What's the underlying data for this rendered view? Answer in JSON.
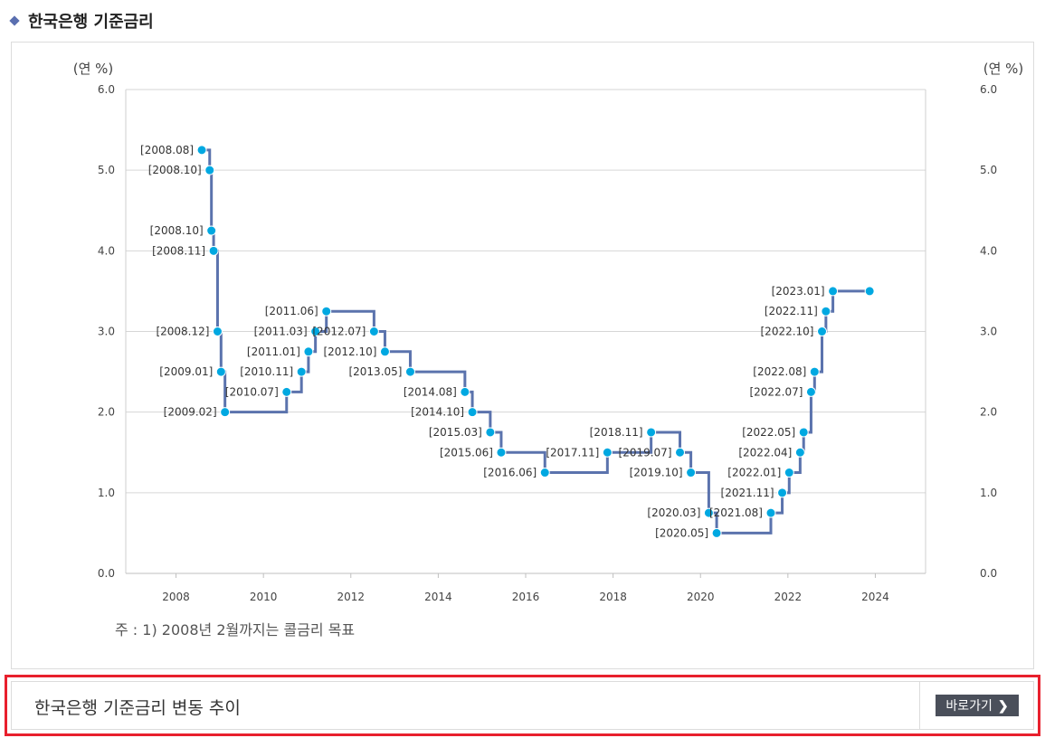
{
  "section": {
    "title": "한국은행 기준금리"
  },
  "chart_data": {
    "type": "line",
    "step": true,
    "ylabel_left": "(연 %)",
    "ylabel_right": "(연 %)",
    "ylim": [
      0,
      6
    ],
    "yticks": [
      "0.0",
      "1.0",
      "2.0",
      "3.0",
      "4.0",
      "5.0",
      "6.0"
    ],
    "xlim": [
      2006.85,
      2025.15
    ],
    "xticks": [
      "2008",
      "2010",
      "2012",
      "2014",
      "2016",
      "2018",
      "2020",
      "2022",
      "2024"
    ],
    "grid": true,
    "line_color": "#5b73ad",
    "marker_color": "#00a8e1",
    "points": [
      {
        "label": "[2008.08]",
        "x": 2008.59,
        "y": 5.25,
        "side": "left"
      },
      {
        "label": "[2008.10]",
        "x": 2008.77,
        "y": 5.0,
        "side": "left"
      },
      {
        "label": "[2008.10]",
        "x": 2008.81,
        "y": 4.25,
        "side": "left"
      },
      {
        "label": "[2008.11]",
        "x": 2008.86,
        "y": 4.0,
        "side": "left"
      },
      {
        "label": "[2008.12]",
        "x": 2008.95,
        "y": 3.0,
        "side": "left"
      },
      {
        "label": "[2009.01]",
        "x": 2009.03,
        "y": 2.5,
        "side": "left"
      },
      {
        "label": "[2009.02]",
        "x": 2009.12,
        "y": 2.0,
        "side": "left"
      },
      {
        "label": "[2010.07]",
        "x": 2010.53,
        "y": 2.25,
        "side": "left"
      },
      {
        "label": "[2010.11]",
        "x": 2010.87,
        "y": 2.5,
        "side": "left"
      },
      {
        "label": "[2011.01]",
        "x": 2011.03,
        "y": 2.75,
        "side": "left"
      },
      {
        "label": "[2011.03]",
        "x": 2011.19,
        "y": 3.0,
        "side": "left"
      },
      {
        "label": "[2011.06]",
        "x": 2011.44,
        "y": 3.25,
        "side": "left"
      },
      {
        "label": "[2012.07]",
        "x": 2012.53,
        "y": 3.0,
        "side": "left"
      },
      {
        "label": "[2012.10]",
        "x": 2012.78,
        "y": 2.75,
        "side": "left"
      },
      {
        "label": "[2013.05]",
        "x": 2013.36,
        "y": 2.5,
        "side": "left"
      },
      {
        "label": "[2014.08]",
        "x": 2014.61,
        "y": 2.25,
        "side": "left"
      },
      {
        "label": "[2014.10]",
        "x": 2014.78,
        "y": 2.0,
        "side": "left"
      },
      {
        "label": "[2015.03]",
        "x": 2015.19,
        "y": 1.75,
        "side": "left"
      },
      {
        "label": "[2015.06]",
        "x": 2015.44,
        "y": 1.5,
        "side": "left"
      },
      {
        "label": "[2016.06]",
        "x": 2016.44,
        "y": 1.25,
        "side": "left"
      },
      {
        "label": "[2017.11]",
        "x": 2017.87,
        "y": 1.5,
        "side": "left"
      },
      {
        "label": "[2018.11]",
        "x": 2018.87,
        "y": 1.75,
        "side": "left"
      },
      {
        "label": "[2019.07]",
        "x": 2019.53,
        "y": 1.5,
        "side": "left"
      },
      {
        "label": "[2019.10]",
        "x": 2019.78,
        "y": 1.25,
        "side": "left"
      },
      {
        "label": "[2020.03]",
        "x": 2020.19,
        "y": 0.75,
        "side": "left"
      },
      {
        "label": "[2020.05]",
        "x": 2020.37,
        "y": 0.5,
        "side": "left"
      },
      {
        "label": "[2021.08]",
        "x": 2021.61,
        "y": 0.75,
        "side": "left"
      },
      {
        "label": "[2021.11]",
        "x": 2021.87,
        "y": 1.0,
        "side": "left"
      },
      {
        "label": "[2022.01]",
        "x": 2022.03,
        "y": 1.25,
        "side": "left"
      },
      {
        "label": "[2022.04]",
        "x": 2022.28,
        "y": 1.5,
        "side": "left"
      },
      {
        "label": "[2022.05]",
        "x": 2022.36,
        "y": 1.75,
        "side": "left"
      },
      {
        "label": "[2022.07]",
        "x": 2022.53,
        "y": 2.25,
        "side": "left"
      },
      {
        "label": "[2022.08]",
        "x": 2022.61,
        "y": 2.5,
        "side": "left"
      },
      {
        "label": "[2022.10]",
        "x": 2022.78,
        "y": 3.0,
        "side": "left"
      },
      {
        "label": "[2022.11]",
        "x": 2022.87,
        "y": 3.25,
        "side": "left"
      },
      {
        "label": "[2023.01]",
        "x": 2023.03,
        "y": 3.5,
        "side": "left"
      },
      {
        "label": "",
        "x": 2023.87,
        "y": 3.5,
        "side": "none"
      }
    ]
  },
  "footnote": "주 : 1) 2008년 2월까지는 콜금리 목표",
  "link": {
    "text": "한국은행 기준금리 변동 추이",
    "button_label": "바로가기",
    "button_icon": "chevron-right-icon"
  }
}
